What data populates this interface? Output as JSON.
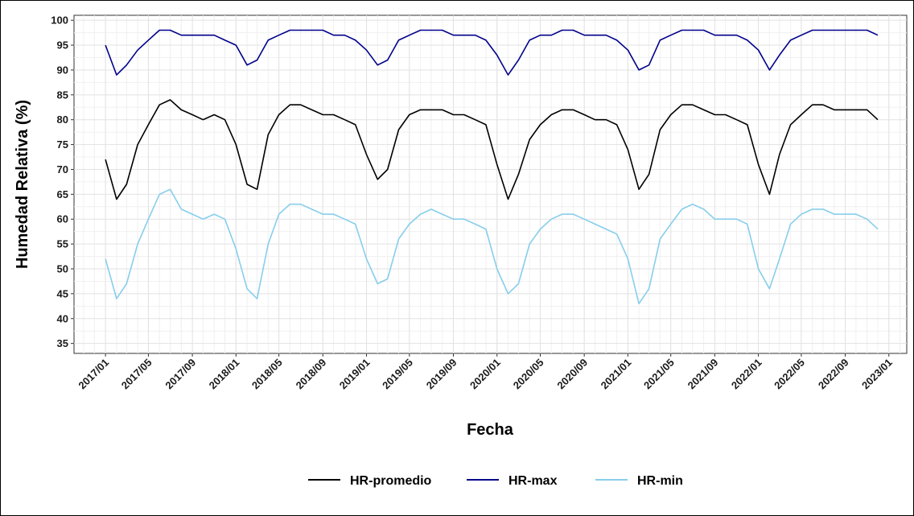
{
  "chart_data": {
    "type": "line",
    "xlabel": "Fecha",
    "ylabel": "Humedad Relativa (%)",
    "ylim": [
      33,
      101
    ],
    "xlim": [
      "2016-10-05",
      "2023-02-20"
    ],
    "y_ticks": [
      35,
      40,
      45,
      50,
      55,
      60,
      65,
      70,
      75,
      80,
      85,
      90,
      95,
      100
    ],
    "x_ticks": [
      "2017/01",
      "2017/05",
      "2017/09",
      "2018/01",
      "2018/05",
      "2018/09",
      "2019/01",
      "2019/05",
      "2019/09",
      "2020/01",
      "2020/05",
      "2020/09",
      "2021/01",
      "2021/05",
      "2021/09",
      "2022/01",
      "2022/05",
      "2022/09",
      "2023/01"
    ],
    "grid": true,
    "legend_position": "bottom",
    "x": [
      "2017-01-01",
      "2017-02-01",
      "2017-03-01",
      "2017-04-01",
      "2017-05-01",
      "2017-06-01",
      "2017-07-01",
      "2017-08-01",
      "2017-09-01",
      "2017-10-01",
      "2017-11-01",
      "2017-12-01",
      "2018-01-01",
      "2018-02-01",
      "2018-03-01",
      "2018-04-01",
      "2018-05-01",
      "2018-06-01",
      "2018-07-01",
      "2018-08-01",
      "2018-09-01",
      "2018-10-01",
      "2018-11-01",
      "2018-12-01",
      "2019-01-01",
      "2019-02-01",
      "2019-03-01",
      "2019-04-01",
      "2019-05-01",
      "2019-06-01",
      "2019-07-01",
      "2019-08-01",
      "2019-09-01",
      "2019-10-01",
      "2019-11-01",
      "2019-12-01",
      "2020-01-01",
      "2020-02-01",
      "2020-03-01",
      "2020-04-01",
      "2020-05-01",
      "2020-06-01",
      "2020-07-01",
      "2020-08-01",
      "2020-09-01",
      "2020-10-01",
      "2020-11-01",
      "2020-12-01",
      "2021-01-01",
      "2021-02-01",
      "2021-03-01",
      "2021-04-01",
      "2021-05-01",
      "2021-06-01",
      "2021-07-01",
      "2021-08-01",
      "2021-09-01",
      "2021-10-01",
      "2021-11-01",
      "2021-12-01",
      "2022-01-01",
      "2022-02-01",
      "2022-03-01",
      "2022-04-01",
      "2022-05-01",
      "2022-06-01",
      "2022-07-01",
      "2022-08-01",
      "2022-09-01",
      "2022-10-01",
      "2022-11-01",
      "2022-12-01"
    ],
    "series": [
      {
        "name": "HR-promedio",
        "color": "#000000",
        "values": [
          72,
          64,
          67,
          75,
          79,
          83,
          84,
          82,
          81,
          80,
          81,
          80,
          75,
          67,
          66,
          77,
          81,
          83,
          83,
          82,
          81,
          81,
          80,
          79,
          73,
          68,
          70,
          78,
          81,
          82,
          82,
          82,
          81,
          81,
          80,
          79,
          71,
          64,
          69,
          76,
          79,
          81,
          82,
          82,
          81,
          80,
          80,
          79,
          74,
          66,
          69,
          78,
          81,
          83,
          83,
          82,
          81,
          81,
          80,
          79,
          71,
          65,
          73,
          79,
          81,
          83,
          83,
          82,
          82,
          82,
          82,
          80
        ]
      },
      {
        "name": "HR-max",
        "color": "#00008b",
        "values": [
          95,
          89,
          91,
          94,
          96,
          98,
          98,
          97,
          97,
          97,
          97,
          96,
          95,
          91,
          92,
          96,
          97,
          98,
          98,
          98,
          98,
          97,
          97,
          96,
          94,
          91,
          92,
          96,
          97,
          98,
          98,
          98,
          97,
          97,
          97,
          96,
          93,
          89,
          92,
          96,
          97,
          97,
          98,
          98,
          97,
          97,
          97,
          96,
          94,
          90,
          91,
          96,
          97,
          98,
          98,
          98,
          97,
          97,
          97,
          96,
          94,
          90,
          93,
          96,
          97,
          98,
          98,
          98,
          98,
          98,
          98,
          97
        ]
      },
      {
        "name": "HR-min",
        "color": "#87ceeb",
        "values": [
          52,
          44,
          47,
          55,
          60,
          65,
          66,
          62,
          61,
          60,
          61,
          60,
          54,
          46,
          44,
          55,
          61,
          63,
          63,
          62,
          61,
          61,
          60,
          59,
          52,
          47,
          48,
          56,
          59,
          61,
          62,
          61,
          60,
          60,
          59,
          58,
          50,
          45,
          47,
          55,
          58,
          60,
          61,
          61,
          60,
          59,
          58,
          57,
          52,
          43,
          46,
          56,
          59,
          62,
          63,
          62,
          60,
          60,
          60,
          59,
          50,
          46,
          52,
          59,
          61,
          62,
          62,
          61,
          61,
          61,
          60,
          58
        ]
      }
    ]
  }
}
